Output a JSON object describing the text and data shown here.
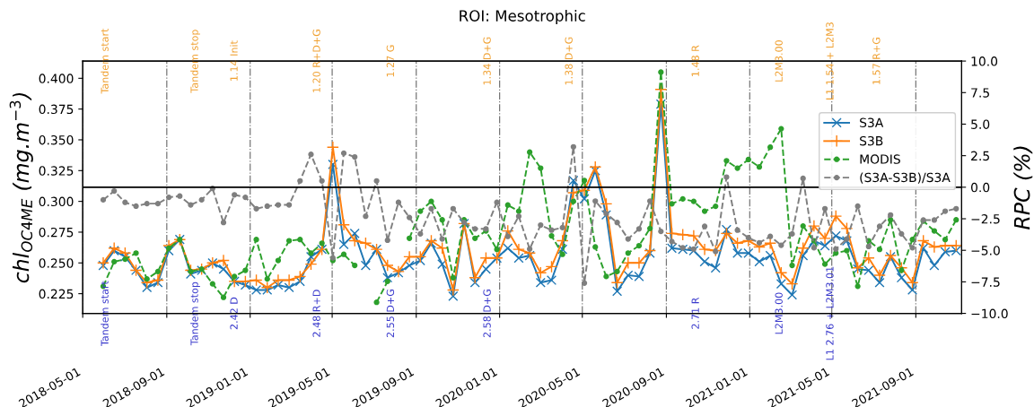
{
  "chart_data": {
    "type": "line",
    "title": "ROI: Mesotrophic",
    "ylabel": "chl$_{OC4ME}$ (mg.m$^{−3}$)",
    "y2label": "RPC (%)",
    "x": [
      "2018-05-31",
      "2018-06-16",
      "2018-07-02",
      "2018-07-18",
      "2018-08-03",
      "2018-08-19",
      "2018-09-04",
      "2018-09-20",
      "2018-10-06",
      "2018-10-22",
      "2018-11-07",
      "2018-11-23",
      "2018-12-09",
      "2018-12-25",
      "2019-01-10",
      "2019-01-26",
      "2019-02-11",
      "2019-02-27",
      "2019-03-15",
      "2019-03-31",
      "2019-04-16",
      "2019-05-02",
      "2019-05-18",
      "2019-06-03",
      "2019-06-19",
      "2019-07-05",
      "2019-07-21",
      "2019-08-06",
      "2019-08-22",
      "2019-09-07",
      "2019-09-23",
      "2019-10-09",
      "2019-10-25",
      "2019-11-10",
      "2019-11-26",
      "2019-12-12",
      "2019-12-28",
      "2020-01-13",
      "2020-01-29",
      "2020-02-14",
      "2020-03-01",
      "2020-03-17",
      "2020-04-02",
      "2020-04-18",
      "2020-05-04",
      "2020-05-20",
      "2020-06-05",
      "2020-06-21",
      "2020-07-07",
      "2020-07-23",
      "2020-08-08",
      "2020-08-24",
      "2020-09-09",
      "2020-09-25",
      "2020-10-11",
      "2020-10-27",
      "2020-11-12",
      "2020-11-28",
      "2020-12-14",
      "2020-12-30",
      "2021-01-15",
      "2021-01-31",
      "2021-02-16",
      "2021-03-04",
      "2021-03-20",
      "2021-04-05",
      "2021-04-21",
      "2021-05-07",
      "2021-05-23",
      "2021-06-08",
      "2021-06-24",
      "2021-07-10",
      "2021-07-26",
      "2021-08-11",
      "2021-08-27",
      "2021-09-12",
      "2021-09-28",
      "2021-10-14",
      "2021-10-30"
    ],
    "series": [
      {
        "name": "S3A",
        "color": "#1f77b4",
        "marker": "cross",
        "line_style": "solid",
        "values": [
          0.248,
          0.26,
          0.255,
          0.244,
          0.23,
          0.234,
          0.26,
          0.269,
          0.241,
          0.244,
          0.25,
          0.245,
          0.235,
          0.232,
          0.228,
          0.228,
          0.232,
          0.23,
          0.235,
          0.255,
          0.261,
          0.33,
          0.265,
          0.274,
          0.248,
          0.261,
          0.238,
          0.242,
          0.248,
          0.252,
          0.266,
          0.249,
          0.223,
          0.282,
          0.234,
          0.245,
          0.254,
          0.262,
          0.254,
          0.256,
          0.234,
          0.236,
          0.261,
          0.317,
          0.302,
          0.325,
          0.289,
          0.227,
          0.24,
          0.239,
          0.258,
          0.379,
          0.262,
          0.261,
          0.26,
          0.251,
          0.246,
          0.277,
          0.258,
          0.258,
          0.251,
          0.256,
          0.233,
          0.224,
          0.256,
          0.268,
          0.264,
          0.272,
          0.268,
          0.245,
          0.244,
          0.234,
          0.255,
          0.238,
          0.228,
          0.262,
          0.248,
          0.259,
          0.26
        ]
      },
      {
        "name": "S3B",
        "color": "#ff7f0e",
        "marker": "plus",
        "line_style": "solid",
        "values": [
          0.25,
          0.262,
          0.258,
          0.244,
          0.234,
          0.236,
          0.264,
          0.269,
          0.244,
          0.245,
          0.25,
          0.252,
          0.235,
          0.235,
          0.236,
          0.23,
          0.236,
          0.236,
          0.239,
          0.249,
          0.261,
          0.344,
          0.281,
          0.268,
          0.266,
          0.261,
          0.248,
          0.243,
          0.255,
          0.255,
          0.268,
          0.262,
          0.228,
          0.282,
          0.238,
          0.254,
          0.254,
          0.276,
          0.261,
          0.258,
          0.242,
          0.247,
          0.268,
          0.307,
          0.309,
          0.328,
          0.298,
          0.234,
          0.25,
          0.25,
          0.26,
          0.391,
          0.274,
          0.273,
          0.272,
          0.261,
          0.26,
          0.274,
          0.266,
          0.268,
          0.263,
          0.266,
          0.242,
          0.233,
          0.262,
          0.28,
          0.27,
          0.288,
          0.278,
          0.246,
          0.254,
          0.24,
          0.256,
          0.246,
          0.234,
          0.268,
          0.263,
          0.264,
          0.264
        ]
      },
      {
        "name": "MODIS",
        "color": "#2ca02c",
        "marker": "circle",
        "line_style": "dashed",
        "values": [
          0.231,
          0.251,
          0.253,
          0.258,
          0.237,
          0.243,
          0.262,
          0.269,
          0.243,
          0.245,
          0.233,
          0.222,
          0.239,
          0.244,
          0.269,
          0.237,
          0.252,
          0.268,
          0.269,
          0.258,
          0.266,
          0.252,
          0.257,
          0.248,
          null,
          0.218,
          0.235,
          null,
          0.27,
          0.292,
          0.3,
          0.285,
          0.238,
          0.285,
          0.27,
          0.276,
          0.261,
          0.297,
          0.292,
          0.34,
          0.327,
          0.272,
          0.257,
          0.3,
          0.317,
          0.263,
          0.239,
          0.243,
          0.258,
          0.264,
          0.278,
          0.405,
          0.298,
          0.302,
          0.3,
          0.292,
          0.296,
          0.333,
          0.327,
          0.334,
          0.328,
          0.344,
          0.359,
          0.248,
          0.28,
          0.268,
          0.249,
          0.258,
          0.26,
          0.231,
          0.268,
          0.261,
          0.285,
          0.244,
          0.269,
          0.284,
          0.276,
          0.269,
          0.285
        ]
      },
      {
        "name": "(S3A-S3B)/S3A",
        "color": "#7f7f7f",
        "marker": "circle",
        "line_style": "dashed",
        "axis": "y2",
        "values": [
          -1.0,
          -0.3,
          -1.2,
          -1.5,
          -1.3,
          -1.3,
          -0.8,
          -0.7,
          -1.4,
          -1.0,
          -0.1,
          -2.8,
          -0.6,
          -0.8,
          -1.7,
          -1.5,
          -1.4,
          -1.4,
          0.5,
          2.6,
          0.5,
          -5.6,
          2.7,
          2.4,
          -2.3,
          0.5,
          -4.2,
          -1.2,
          -2.4,
          -3.7,
          -1.7,
          -4.1,
          -1.7,
          -2.8,
          -3.3,
          -3.3,
          -1.2,
          -3.9,
          -2.3,
          -4.9,
          -3.0,
          -3.4,
          -3.2,
          3.2,
          -7.6,
          -1.1,
          -2.1,
          -2.8,
          -4.1,
          -3.3,
          -1.1,
          -3.5,
          -4.3,
          -4.8,
          -4.9,
          -3.1,
          -5.1,
          0.8,
          -3.4,
          -4.0,
          -4.4,
          -3.9,
          -4.6,
          -3.7,
          0.7,
          -4.8,
          -1.7,
          -4.9,
          -4.1,
          -1.5,
          -4.7,
          -3.1,
          -2.2,
          -3.7,
          -4.8,
          -2.6,
          -2.6,
          -1.9,
          -1.7
        ]
      }
    ],
    "xlim": [
      "2018-05-01",
      "2021-11-07"
    ],
    "xticks": [
      "2018-05-01",
      "2018-09-01",
      "2019-01-01",
      "2019-05-01",
      "2019-09-01",
      "2020-01-01",
      "2020-05-01",
      "2020-09-01",
      "2021-01-01",
      "2021-05-01",
      "2021-09-01"
    ],
    "ylim": [
      0.209,
      0.414
    ],
    "yticks": [
      0.225,
      {
        "value": 0.25,
        "label": "0.250"
      },
      0.275,
      {
        "value": 0.3,
        "label": "0.300"
      },
      0.325,
      {
        "value": 0.35,
        "label": "0.350"
      },
      0.375,
      {
        "value": 0.4,
        "label": "0.400"
      }
    ],
    "y2lim": [
      -10,
      10
    ],
    "y2ticks": [
      {
        "value": -10,
        "label": "−10.0"
      },
      {
        "value": -7.5,
        "label": "−7.5"
      },
      {
        "value": -5,
        "label": "−5.0"
      },
      {
        "value": -2.5,
        "label": "−2.5"
      },
      {
        "value": 0,
        "label": "0.0"
      },
      {
        "value": 2.5,
        "label": "2.5"
      },
      {
        "value": 5,
        "label": "5.0"
      },
      {
        "value": 7.5,
        "label": "7.5"
      },
      {
        "value": 10,
        "label": "10.0"
      }
    ],
    "ref_lines": [
      {
        "axis": "y2",
        "value": 0,
        "color": "#000000",
        "line_style": "solid"
      }
    ],
    "grid": "x",
    "legend": "top right",
    "annotations": [
      "Tandem start",
      "Tandem stop",
      "1.14 Init",
      "1.20 R+D+G",
      "1.27 G",
      "1.34 D+G",
      "1.38 D+G",
      "1.48 R",
      "L2M3.00",
      "L1 1.54 + L2M3",
      "1.57 R+G",
      "Tandem start",
      "Tandem stop",
      "2.42 D",
      "2.48 R+D",
      "2.55 D+G",
      "2.58 D+G",
      "2.71 R",
      "L2M3.00",
      "L1 2.76 + L2M3.01"
    ]
  }
}
